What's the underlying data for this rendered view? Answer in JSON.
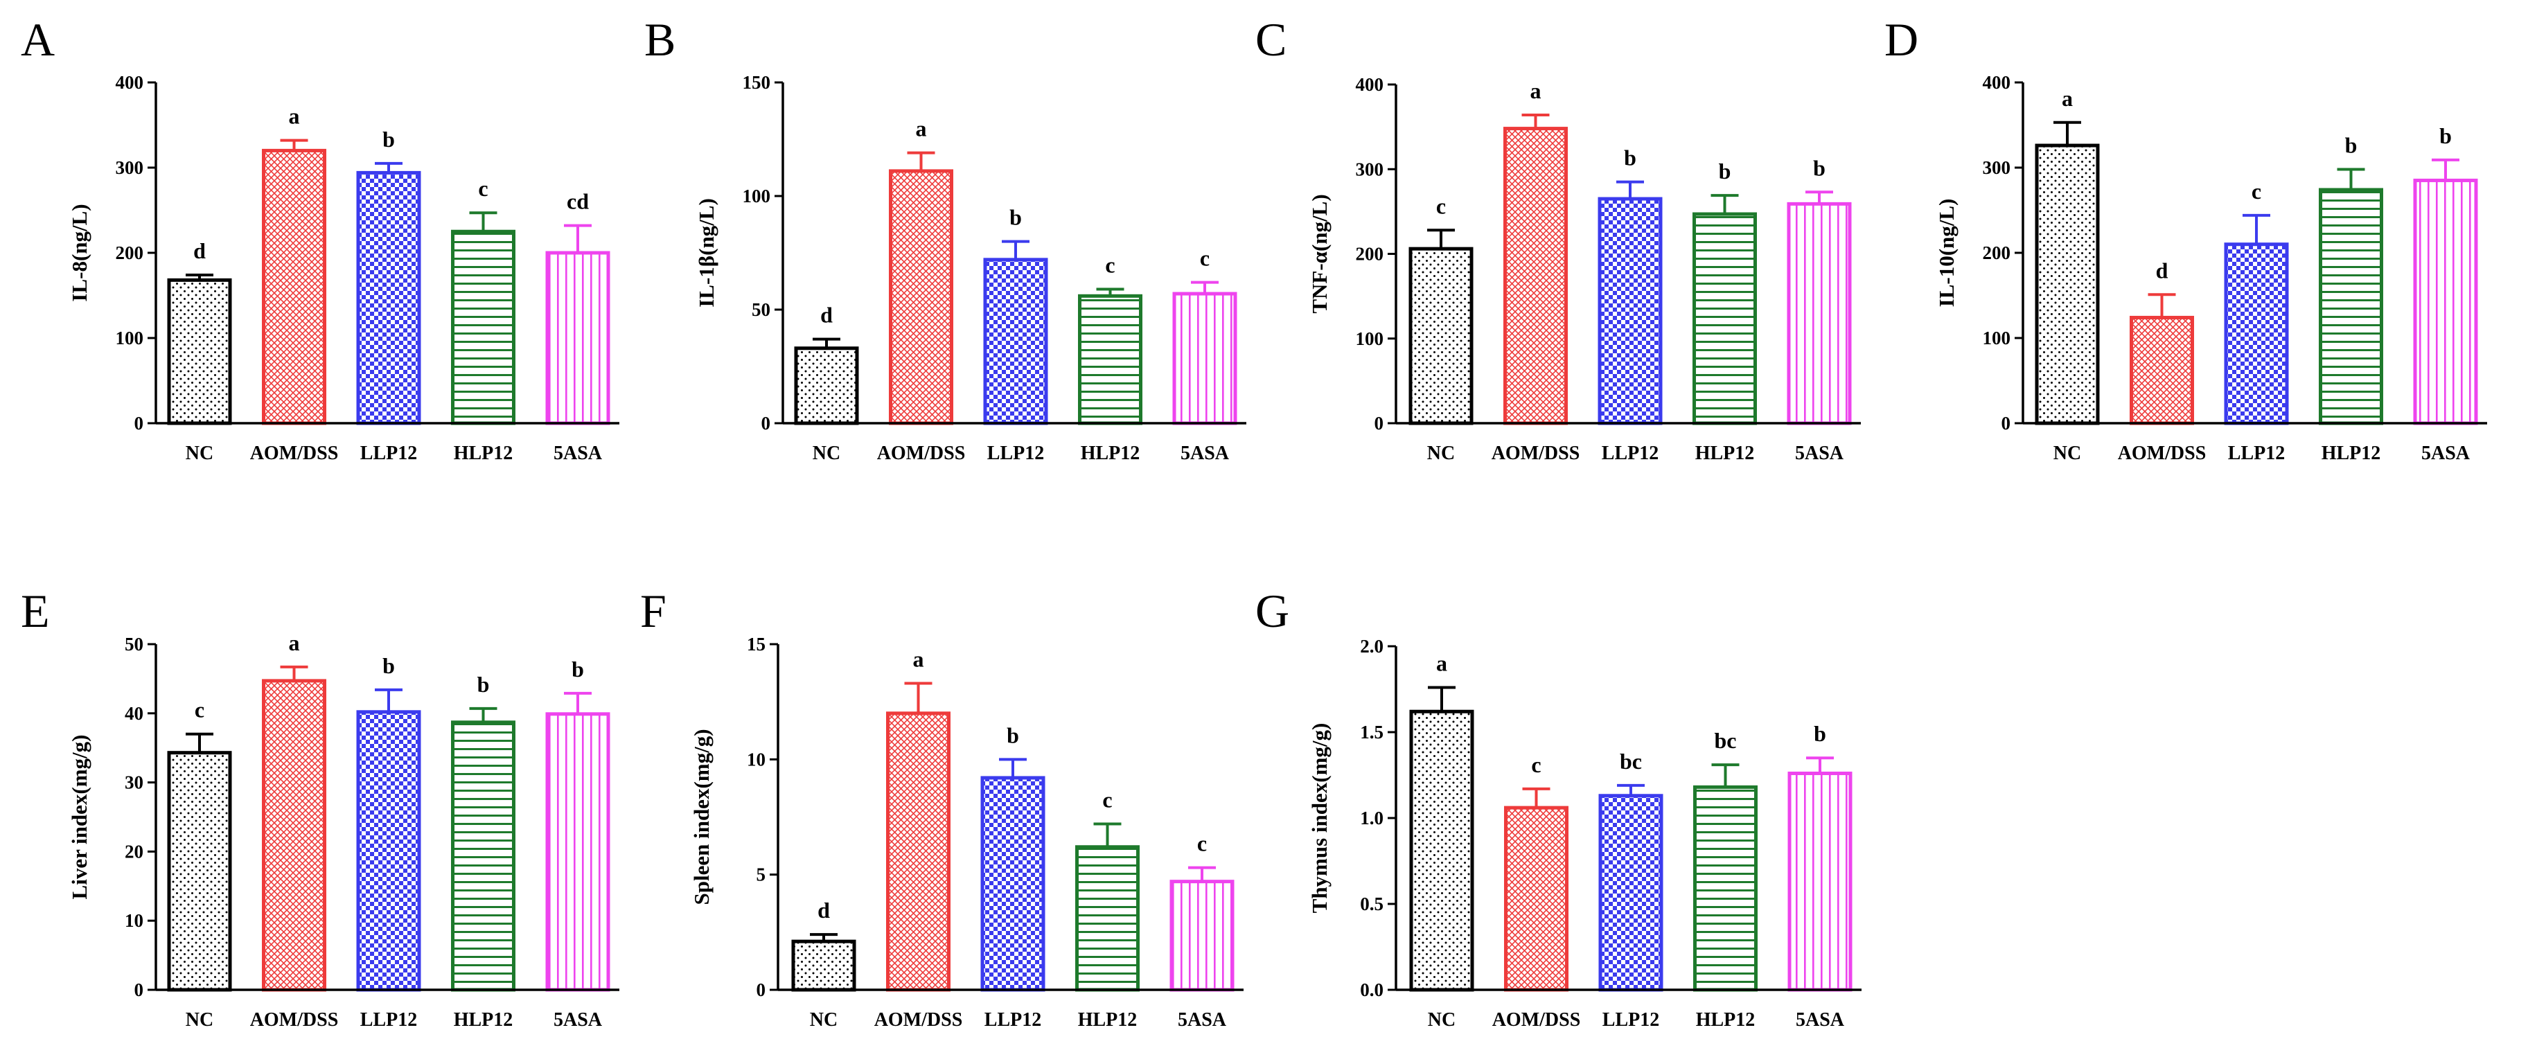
{
  "figure": {
    "groups": [
      "NC",
      "AOM/DSS",
      "LLP12",
      "HLP12",
      "5ASA"
    ],
    "group_colors": [
      "#000000",
      "#ee3b3b",
      "#3b3bee",
      "#1e7a2c",
      "#ee44ee"
    ],
    "group_patterns": [
      "dots",
      "crosshatch",
      "checker",
      "horizontal",
      "vertical"
    ]
  },
  "chart_data": [
    {
      "panel": "A",
      "type": "bar",
      "ylabel": "IL-8(ng/L)",
      "ylim": [
        0,
        400
      ],
      "yticks": [
        "0",
        "100",
        "200",
        "300",
        "400"
      ],
      "categories": [
        "NC",
        "AOM/DSS",
        "LLP12",
        "HLP12",
        "5ASA"
      ],
      "values": [
        168,
        320,
        294,
        225,
        200
      ],
      "errors": [
        6,
        12,
        11,
        22,
        32
      ],
      "labels": [
        "d",
        "a",
        "b",
        "c",
        "cd"
      ]
    },
    {
      "panel": "B",
      "type": "bar",
      "ylabel": "IL-1β(ng/L)",
      "ylim": [
        0,
        150
      ],
      "yticks": [
        "0",
        "50",
        "100",
        "150"
      ],
      "categories": [
        "NC",
        "AOM/DSS",
        "LLP12",
        "HLP12",
        "5ASA"
      ],
      "values": [
        33,
        111,
        72,
        56,
        57
      ],
      "errors": [
        4,
        8,
        8,
        3,
        5
      ],
      "labels": [
        "d",
        "a",
        "b",
        "c",
        "c"
      ]
    },
    {
      "panel": "C",
      "type": "bar",
      "ylabel": "TNF-α(ng/L)",
      "ylim": [
        0,
        400
      ],
      "yticks": [
        "0",
        "100",
        "200",
        "300",
        "400"
      ],
      "categories": [
        "NC",
        "AOM/DSS",
        "LLP12",
        "HLP12",
        "5ASA"
      ],
      "values": [
        206,
        348,
        265,
        247,
        259
      ],
      "errors": [
        22,
        16,
        20,
        22,
        14
      ],
      "labels": [
        "c",
        "a",
        "b",
        "b",
        "b"
      ]
    },
    {
      "panel": "D",
      "type": "bar",
      "ylabel": "IL-10(ng/L)",
      "ylim": [
        0,
        400
      ],
      "yticks": [
        "0",
        "100",
        "200",
        "300",
        "400"
      ],
      "categories": [
        "NC",
        "AOM/DSS",
        "LLP12",
        "HLP12",
        "5ASA"
      ],
      "values": [
        326,
        124,
        210,
        274,
        285
      ],
      "errors": [
        27,
        27,
        34,
        24,
        24
      ],
      "labels": [
        "a",
        "d",
        "c",
        "b",
        "b"
      ]
    },
    {
      "panel": "E",
      "type": "bar",
      "ylabel": "Liver index(mg/g)",
      "ylim": [
        0,
        50
      ],
      "yticks": [
        "0",
        "10",
        "20",
        "30",
        "40",
        "50"
      ],
      "categories": [
        "NC",
        "AOM/DSS",
        "LLP12",
        "HLP12",
        "5ASA"
      ],
      "values": [
        34.3,
        44.7,
        40.2,
        38.7,
        39.9
      ],
      "errors": [
        2.7,
        2.0,
        3.2,
        2.0,
        3.0
      ],
      "labels": [
        "c",
        "a",
        "b",
        "b",
        "b"
      ]
    },
    {
      "panel": "F",
      "type": "bar",
      "ylabel": "Spleen index(mg/g)",
      "ylim": [
        0,
        15
      ],
      "yticks": [
        "0",
        "5",
        "10",
        "15"
      ],
      "categories": [
        "NC",
        "AOM/DSS",
        "LLP12",
        "HLP12",
        "5ASA"
      ],
      "values": [
        2.1,
        12.0,
        9.2,
        6.2,
        4.7
      ],
      "errors": [
        0.3,
        1.3,
        0.8,
        1.0,
        0.6
      ],
      "labels": [
        "d",
        "a",
        "b",
        "c",
        "c"
      ]
    },
    {
      "panel": "G",
      "type": "bar",
      "ylabel": "Thymus index(mg/g)",
      "ylim": [
        0,
        2.0
      ],
      "yticks": [
        "0.0",
        "0.5",
        "1.0",
        "1.5",
        "2.0"
      ],
      "categories": [
        "NC",
        "AOM/DSS",
        "LLP12",
        "HLP12",
        "5ASA"
      ],
      "values": [
        1.62,
        1.06,
        1.13,
        1.18,
        1.26
      ],
      "errors": [
        0.14,
        0.11,
        0.06,
        0.13,
        0.09
      ],
      "labels": [
        "a",
        "c",
        "bc",
        "bc",
        "b"
      ]
    }
  ]
}
